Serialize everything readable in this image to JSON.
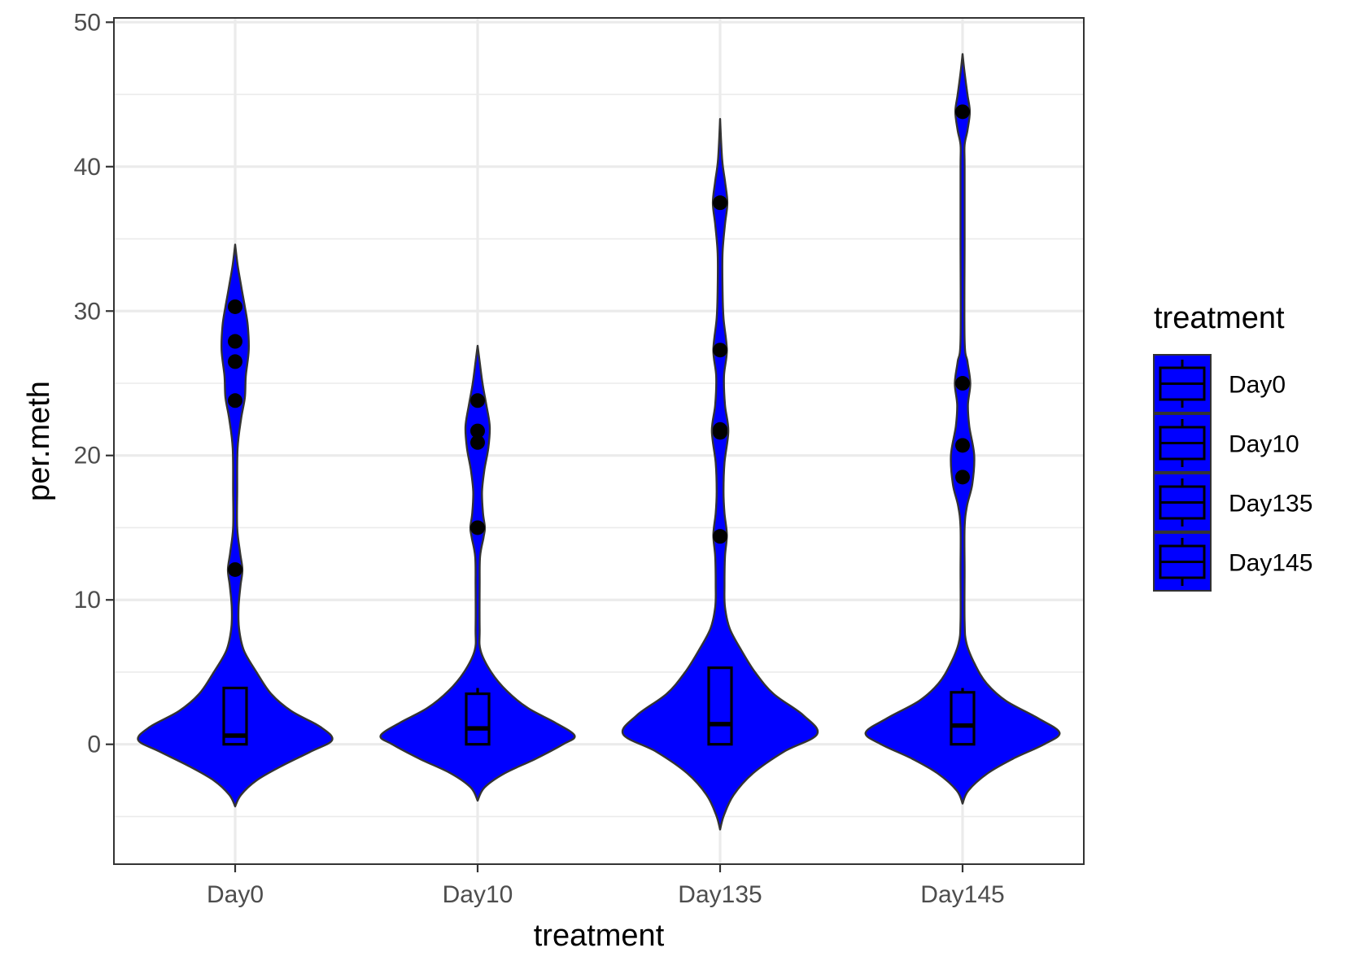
{
  "chart_data": {
    "type": "violin",
    "xlabel": "treatment",
    "ylabel": "per.meth",
    "categories": [
      "Day0",
      "Day10",
      "Day135",
      "Day145"
    ],
    "ylim": [
      -8.3,
      50.3
    ],
    "yticks": [
      0,
      10,
      20,
      30,
      40,
      50
    ],
    "ytick_labels": [
      "0",
      "10",
      "20",
      "30",
      "40",
      "50"
    ],
    "grid": true,
    "fill_color": "#0000ff",
    "outline_color": "#333333",
    "point_color": "#000000",
    "legend": {
      "title": "treatment",
      "position": "right",
      "entries": [
        "Day0",
        "Day10",
        "Day135",
        "Day145"
      ]
    },
    "groups": [
      {
        "name": "Day0",
        "violin_range": [
          -4.3,
          34.6
        ],
        "box": {
          "q1": 0.0,
          "median": 0.6,
          "q3": 3.9,
          "whisker_low": 0.0,
          "whisker_high": 3.9
        },
        "outliers": [
          30.3,
          27.9,
          26.5,
          23.8,
          12.1
        ],
        "density": [
          [
            -4.3,
            0.0
          ],
          [
            -3.5,
            0.06
          ],
          [
            -2.5,
            0.22
          ],
          [
            -1.5,
            0.48
          ],
          [
            -0.5,
            0.78
          ],
          [
            0.3,
            1.0
          ],
          [
            1.2,
            0.88
          ],
          [
            2.3,
            0.58
          ],
          [
            3.5,
            0.37
          ],
          [
            5.0,
            0.22
          ],
          [
            6.5,
            0.09
          ],
          [
            8.0,
            0.04
          ],
          [
            9.5,
            0.035
          ],
          [
            11.0,
            0.055
          ],
          [
            12.1,
            0.075
          ],
          [
            13.3,
            0.05
          ],
          [
            15.0,
            0.02
          ],
          [
            17.5,
            0.015
          ],
          [
            20.5,
            0.025
          ],
          [
            22.5,
            0.06
          ],
          [
            24.0,
            0.1
          ],
          [
            25.5,
            0.11
          ],
          [
            27.3,
            0.14
          ],
          [
            29.0,
            0.13
          ],
          [
            30.3,
            0.1
          ],
          [
            31.8,
            0.06
          ],
          [
            33.2,
            0.025
          ],
          [
            34.6,
            0.0
          ]
        ]
      },
      {
        "name": "Day10",
        "violin_range": [
          -3.9,
          27.6
        ],
        "box": {
          "q1": 0.0,
          "median": 1.1,
          "q3": 3.5,
          "whisker_low": 0.0,
          "whisker_high": 3.9
        },
        "outliers": [
          23.8,
          21.7,
          20.9,
          15.0
        ],
        "density": [
          [
            -3.9,
            0.0
          ],
          [
            -3.0,
            0.07
          ],
          [
            -2.0,
            0.28
          ],
          [
            -1.0,
            0.6
          ],
          [
            0.0,
            0.88
          ],
          [
            0.6,
            1.0
          ],
          [
            1.5,
            0.8
          ],
          [
            2.5,
            0.52
          ],
          [
            3.7,
            0.3
          ],
          [
            5.0,
            0.14
          ],
          [
            6.5,
            0.03
          ],
          [
            8.0,
            0.012
          ],
          [
            11.0,
            0.012
          ],
          [
            13.0,
            0.025
          ],
          [
            14.3,
            0.06
          ],
          [
            15.0,
            0.075
          ],
          [
            16.0,
            0.055
          ],
          [
            17.5,
            0.045
          ],
          [
            19.0,
            0.07
          ],
          [
            20.5,
            0.11
          ],
          [
            22.0,
            0.125
          ],
          [
            23.5,
            0.09
          ],
          [
            25.0,
            0.05
          ],
          [
            26.5,
            0.02
          ],
          [
            27.6,
            0.0
          ]
        ]
      },
      {
        "name": "Day135",
        "violin_range": [
          -5.9,
          43.3
        ],
        "box": {
          "q1": 0.0,
          "median": 1.4,
          "q3": 5.3,
          "whisker_low": 0.0,
          "whisker_high": 5.3
        },
        "outliers": [
          37.5,
          27.3,
          21.8,
          21.6,
          14.4
        ],
        "density": [
          [
            -5.9,
            0.0
          ],
          [
            -4.9,
            0.04
          ],
          [
            -3.5,
            0.14
          ],
          [
            -2.0,
            0.34
          ],
          [
            -0.5,
            0.66
          ],
          [
            0.7,
            1.0
          ],
          [
            2.0,
            0.86
          ],
          [
            3.5,
            0.55
          ],
          [
            5.0,
            0.36
          ],
          [
            6.5,
            0.22
          ],
          [
            8.0,
            0.1
          ],
          [
            9.5,
            0.05
          ],
          [
            11.0,
            0.045
          ],
          [
            13.0,
            0.05
          ],
          [
            14.5,
            0.07
          ],
          [
            16.0,
            0.045
          ],
          [
            17.5,
            0.035
          ],
          [
            19.5,
            0.045
          ],
          [
            21.7,
            0.085
          ],
          [
            23.5,
            0.05
          ],
          [
            25.5,
            0.04
          ],
          [
            27.3,
            0.07
          ],
          [
            29.5,
            0.035
          ],
          [
            31.5,
            0.025
          ],
          [
            34.0,
            0.025
          ],
          [
            36.0,
            0.05
          ],
          [
            37.5,
            0.075
          ],
          [
            39.0,
            0.05
          ],
          [
            40.5,
            0.02
          ],
          [
            43.3,
            0.0
          ]
        ]
      },
      {
        "name": "Day145",
        "violin_range": [
          -4.1,
          47.8
        ],
        "box": {
          "q1": 0.0,
          "median": 1.3,
          "q3": 3.6,
          "whisker_low": 0.0,
          "whisker_high": 3.9
        },
        "outliers": [
          43.8,
          25.0,
          20.7,
          18.5
        ],
        "density": [
          [
            -4.1,
            0.0
          ],
          [
            -3.2,
            0.06
          ],
          [
            -2.0,
            0.26
          ],
          [
            -1.0,
            0.52
          ],
          [
            0.0,
            0.84
          ],
          [
            0.8,
            1.0
          ],
          [
            1.8,
            0.78
          ],
          [
            3.0,
            0.45
          ],
          [
            4.2,
            0.25
          ],
          [
            5.5,
            0.13
          ],
          [
            7.0,
            0.04
          ],
          [
            8.5,
            0.012
          ],
          [
            12.0,
            0.01
          ],
          [
            15.0,
            0.012
          ],
          [
            16.5,
            0.045
          ],
          [
            18.0,
            0.1
          ],
          [
            20.0,
            0.12
          ],
          [
            22.0,
            0.07
          ],
          [
            23.5,
            0.055
          ],
          [
            25.0,
            0.08
          ],
          [
            26.5,
            0.05
          ],
          [
            28.0,
            0.012
          ],
          [
            35.0,
            0.01
          ],
          [
            40.0,
            0.01
          ],
          [
            41.5,
            0.02
          ],
          [
            42.5,
            0.05
          ],
          [
            43.8,
            0.075
          ],
          [
            45.0,
            0.05
          ],
          [
            46.5,
            0.02
          ],
          [
            47.8,
            0.0
          ]
        ]
      }
    ]
  }
}
